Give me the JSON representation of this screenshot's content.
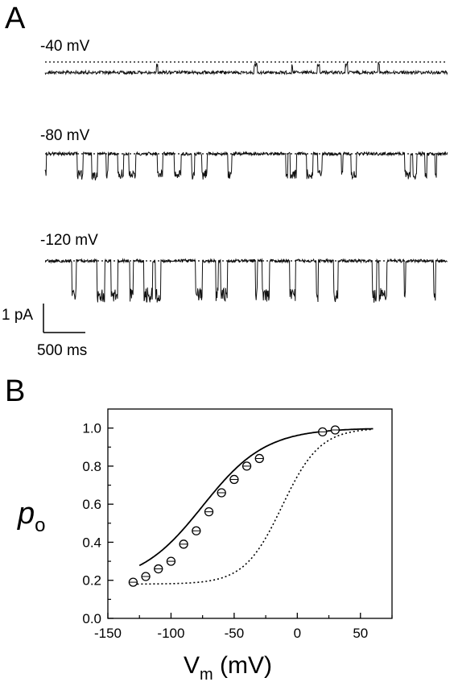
{
  "panels": {
    "a_label": "A",
    "b_label": "B"
  },
  "traces": [
    {
      "label": "-40 mV"
    },
    {
      "label": "-80 mV"
    },
    {
      "label": "-120 mV"
    }
  ],
  "scale_bar": {
    "current_label": "1 pA",
    "time_label": "500 ms"
  },
  "chart_data": {
    "type": "scatter",
    "title": "",
    "xlabel_main": "V",
    "xlabel_sub": "m",
    "xlabel_unit": " (mV)",
    "ylabel_main": "p",
    "ylabel_sub": "o",
    "xlim": [
      -150,
      75
    ],
    "ylim": [
      0.0,
      1.1
    ],
    "xticks": [
      -150,
      -100,
      -50,
      0,
      50
    ],
    "xtick_labels": [
      "-150",
      "-100",
      "-50",
      "0",
      "50"
    ],
    "yticks": [
      0.0,
      0.2,
      0.4,
      0.6,
      0.8,
      1.0
    ],
    "ytick_labels": [
      "0.0",
      "0.2",
      "0.4",
      "0.6",
      "0.8",
      "1.0"
    ],
    "grid": false,
    "points": {
      "x": [
        -130,
        -120,
        -110,
        -100,
        -90,
        -80,
        -70,
        -60,
        -50,
        -40,
        -30,
        20,
        30
      ],
      "y": [
        0.19,
        0.22,
        0.26,
        0.3,
        0.39,
        0.46,
        0.56,
        0.66,
        0.73,
        0.8,
        0.84,
        0.98,
        0.99
      ],
      "err": [
        0.015,
        0.015,
        0.015,
        0.015,
        0.018,
        0.018,
        0.018,
        0.018,
        0.015,
        0.015,
        0.015,
        0.012,
        0.012
      ]
    },
    "fit_solid": {
      "pmin": 0.18,
      "vhalf": -75,
      "slope": 25,
      "x_start": -125,
      "x_end": 60
    },
    "fit_dotted": {
      "pmin": 0.18,
      "vhalf": -12,
      "slope": 15,
      "x_start": -130,
      "x_end": 60
    }
  }
}
